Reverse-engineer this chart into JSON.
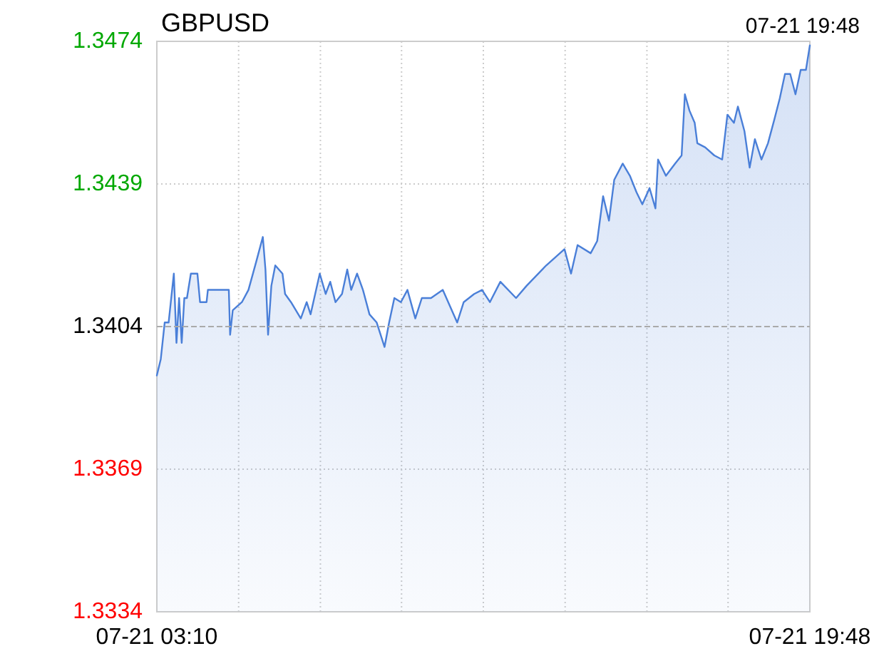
{
  "chart_data": {
    "type": "area",
    "title": "GBPUSD",
    "subtitle": "07-21 19:48",
    "xlim": [
      "--07-21T03:10",
      "--07-21T19:48"
    ],
    "xticks": [
      {
        "value": "--07-21T03:10",
        "label": "07-21 03:10"
      },
      {
        "value": "--07-21T05:15",
        "label": null
      },
      {
        "value": "--07-21T07:20",
        "label": null
      },
      {
        "value": "--07-21T09:24",
        "label": null
      },
      {
        "value": "--07-21T11:29",
        "label": null
      },
      {
        "value": "--07-21T13:34",
        "label": null
      },
      {
        "value": "--07-21T15:39",
        "label": null
      },
      {
        "value": "--07-21T17:43",
        "label": null
      },
      {
        "value": "--07-21T19:48",
        "label": "07-21 19:48"
      }
    ],
    "ylim": [
      1.3334,
      1.3474
    ],
    "yticks": [
      1.3334,
      1.3369,
      1.3404,
      1.3439,
      1.3474
    ],
    "grid": true,
    "marker": "none",
    "line_style": "solid",
    "ref_lines": [
      {
        "axis": "y",
        "value": 1.3404,
        "label": null,
        "color": "#aaaaaa",
        "line_style": "dashed"
      }
    ],
    "series": [
      {
        "color": "#4a7fd8",
        "x": [
          "--07-21T03:10",
          "--07-21T03:16",
          "--07-21T03:22",
          "--07-21T03:28",
          "--07-21T03:36",
          "--07-21T03:40",
          "--07-21T03:44",
          "--07-21T03:48",
          "--07-21T03:52",
          "--07-21T03:56",
          "--07-21T04:02",
          "--07-21T04:12",
          "--07-21T04:16",
          "--07-21T04:26",
          "--07-21T04:28",
          "--07-21T05:00",
          "--07-21T05:02",
          "--07-21T05:06",
          "--07-21T05:20",
          "--07-21T05:30",
          "--07-21T05:42",
          "--07-21T05:52",
          "--07-21T05:56",
          "--07-21T06:00",
          "--07-21T06:05",
          "--07-21T06:11",
          "--07-21T06:22",
          "--07-21T06:26",
          "--07-21T06:35",
          "--07-21T06:50",
          "--07-21T06:59",
          "--07-21T07:05",
          "--07-21T07:19",
          "--07-21T07:28",
          "--07-21T07:35",
          "--07-21T07:43",
          "--07-21T07:53",
          "--07-21T08:01",
          "--07-21T08:07",
          "--07-21T08:16",
          "--07-21T08:25",
          "--07-21T08:35",
          "--07-21T08:46",
          "--07-21T08:58",
          "--07-21T09:05",
          "--07-21T09:13",
          "--07-21T09:23",
          "--07-21T09:33",
          "--07-21T09:45",
          "--07-21T09:55",
          "--07-21T10:09",
          "--07-21T10:27",
          "--07-21T10:49",
          "--07-21T10:59",
          "--07-21T11:15",
          "--07-21T11:27",
          "--07-21T11:39",
          "--07-21T11:55",
          "--07-21T12:19",
          "--07-21T12:35",
          "--07-21T13:05",
          "--07-21T13:33",
          "--07-21T13:43",
          "--07-21T13:53",
          "--07-21T14:13",
          "--07-21T14:23",
          "--07-21T14:32",
          "--07-21T14:41",
          "--07-21T14:49",
          "--07-21T15:02",
          "--07-21T15:13",
          "--07-21T15:23",
          "--07-21T15:32",
          "--07-21T15:43",
          "--07-21T15:52",
          "--07-21T15:56",
          "--07-21T16:08",
          "--07-21T16:22",
          "--07-21T16:32",
          "--07-21T16:37",
          "--07-21T16:44",
          "--07-21T16:52",
          "--07-21T16:56",
          "--07-21T17:08",
          "--07-21T17:22",
          "--07-21T17:34",
          "--07-21T17:42",
          "--07-21T17:52",
          "--07-21T17:58",
          "--07-21T18:08",
          "--07-21T18:16",
          "--07-21T18:24",
          "--07-21T18:34",
          "--07-21T18:44",
          "--07-21T18:54",
          "--07-21T19:02",
          "--07-21T19:10",
          "--07-21T19:18",
          "--07-21T19:26",
          "--07-21T19:34",
          "--07-21T19:42",
          "--07-21T19:48"
        ],
        "values": [
          1.3392,
          1.3396,
          1.3405,
          1.3405,
          1.3417,
          1.34,
          1.3411,
          1.34,
          1.3411,
          1.3411,
          1.3417,
          1.3417,
          1.341,
          1.341,
          1.3413,
          1.3413,
          1.3402,
          1.3408,
          1.341,
          1.3413,
          1.342,
          1.3426,
          1.3418,
          1.3402,
          1.3414,
          1.3419,
          1.3417,
          1.3412,
          1.341,
          1.3406,
          1.341,
          1.3407,
          1.3417,
          1.3412,
          1.3415,
          1.341,
          1.3412,
          1.3418,
          1.3413,
          1.3417,
          1.3413,
          1.3407,
          1.3405,
          1.3399,
          1.3405,
          1.3411,
          1.341,
          1.3413,
          1.3406,
          1.3411,
          1.3411,
          1.3413,
          1.3405,
          1.341,
          1.3412,
          1.3413,
          1.341,
          1.3415,
          1.3411,
          1.3414,
          1.3419,
          1.3423,
          1.3417,
          1.3424,
          1.3422,
          1.3425,
          1.3436,
          1.343,
          1.344,
          1.3444,
          1.3441,
          1.3437,
          1.3434,
          1.3438,
          1.3433,
          1.3445,
          1.3441,
          1.3444,
          1.3446,
          1.3461,
          1.3457,
          1.3454,
          1.3449,
          1.3448,
          1.3446,
          1.3445,
          1.3456,
          1.3454,
          1.3458,
          1.3452,
          1.3443,
          1.345,
          1.3445,
          1.3449,
          1.3455,
          1.346,
          1.3466,
          1.3466,
          1.3461,
          1.3467,
          1.3467,
          1.3473
        ]
      }
    ]
  }
}
